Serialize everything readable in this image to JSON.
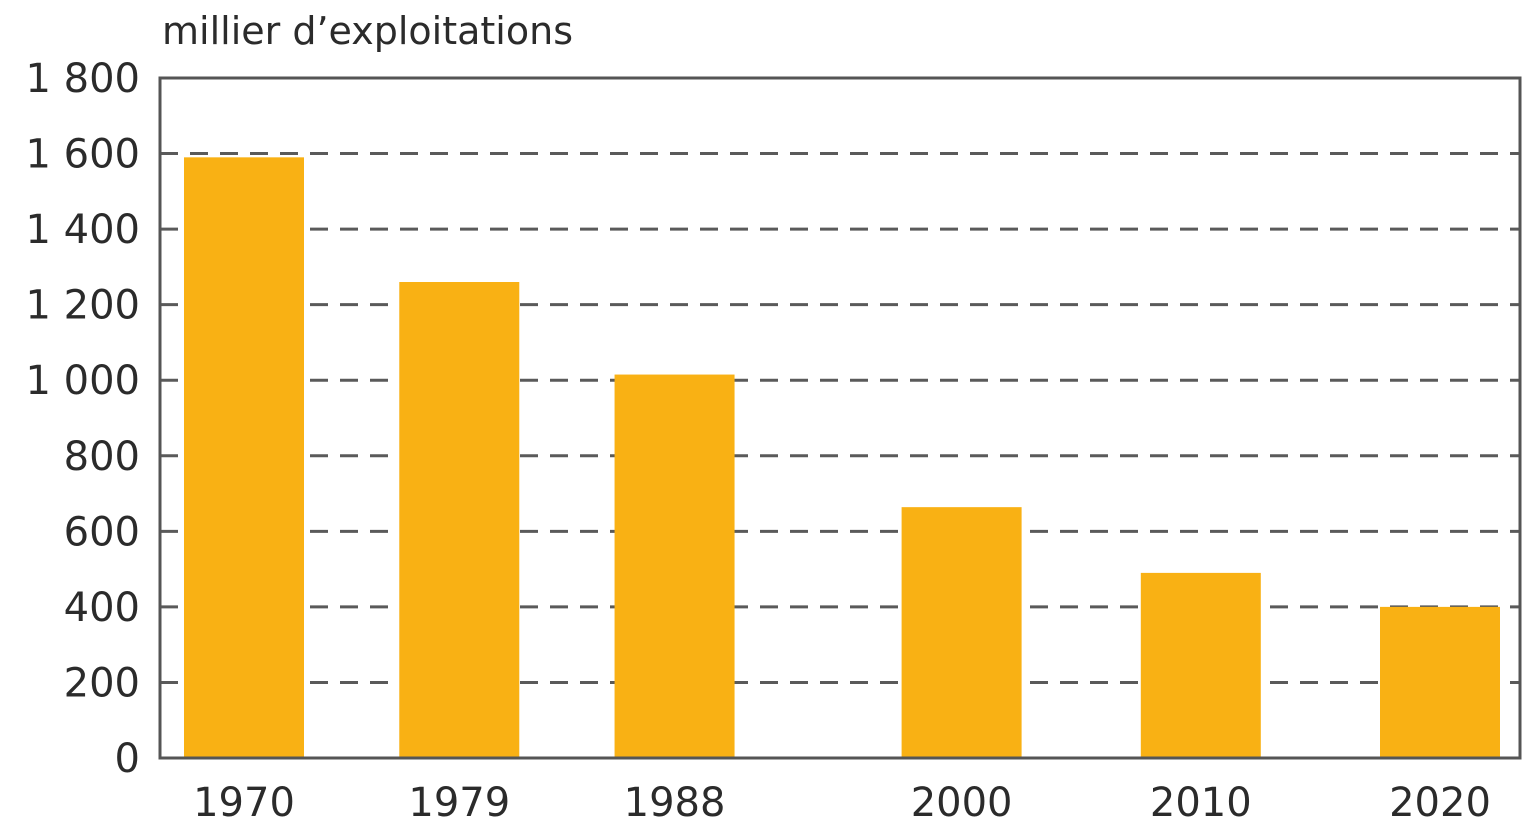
{
  "chart_data": {
    "type": "bar",
    "ylabel": "millier d’exploitations",
    "xlabel": "",
    "title": "",
    "categories": [
      "1970",
      "1979",
      "1988",
      "2000",
      "2010",
      "2020"
    ],
    "values": [
      1590,
      1260,
      1015,
      664,
      490,
      400
    ],
    "ylim": [
      0,
      1800
    ],
    "yticks": [
      0,
      200,
      400,
      600,
      800,
      1000,
      1200,
      1400,
      1600,
      1800
    ],
    "ytick_labels": [
      "0",
      "200",
      "400",
      "600",
      "800",
      "1 000",
      "1 200",
      "1 400",
      "1 600",
      "1 800"
    ],
    "grid": "dashed horizontal",
    "bar_color": "#f9b114",
    "axis_color": "#555555",
    "grid_color": "#5a5a5a"
  }
}
